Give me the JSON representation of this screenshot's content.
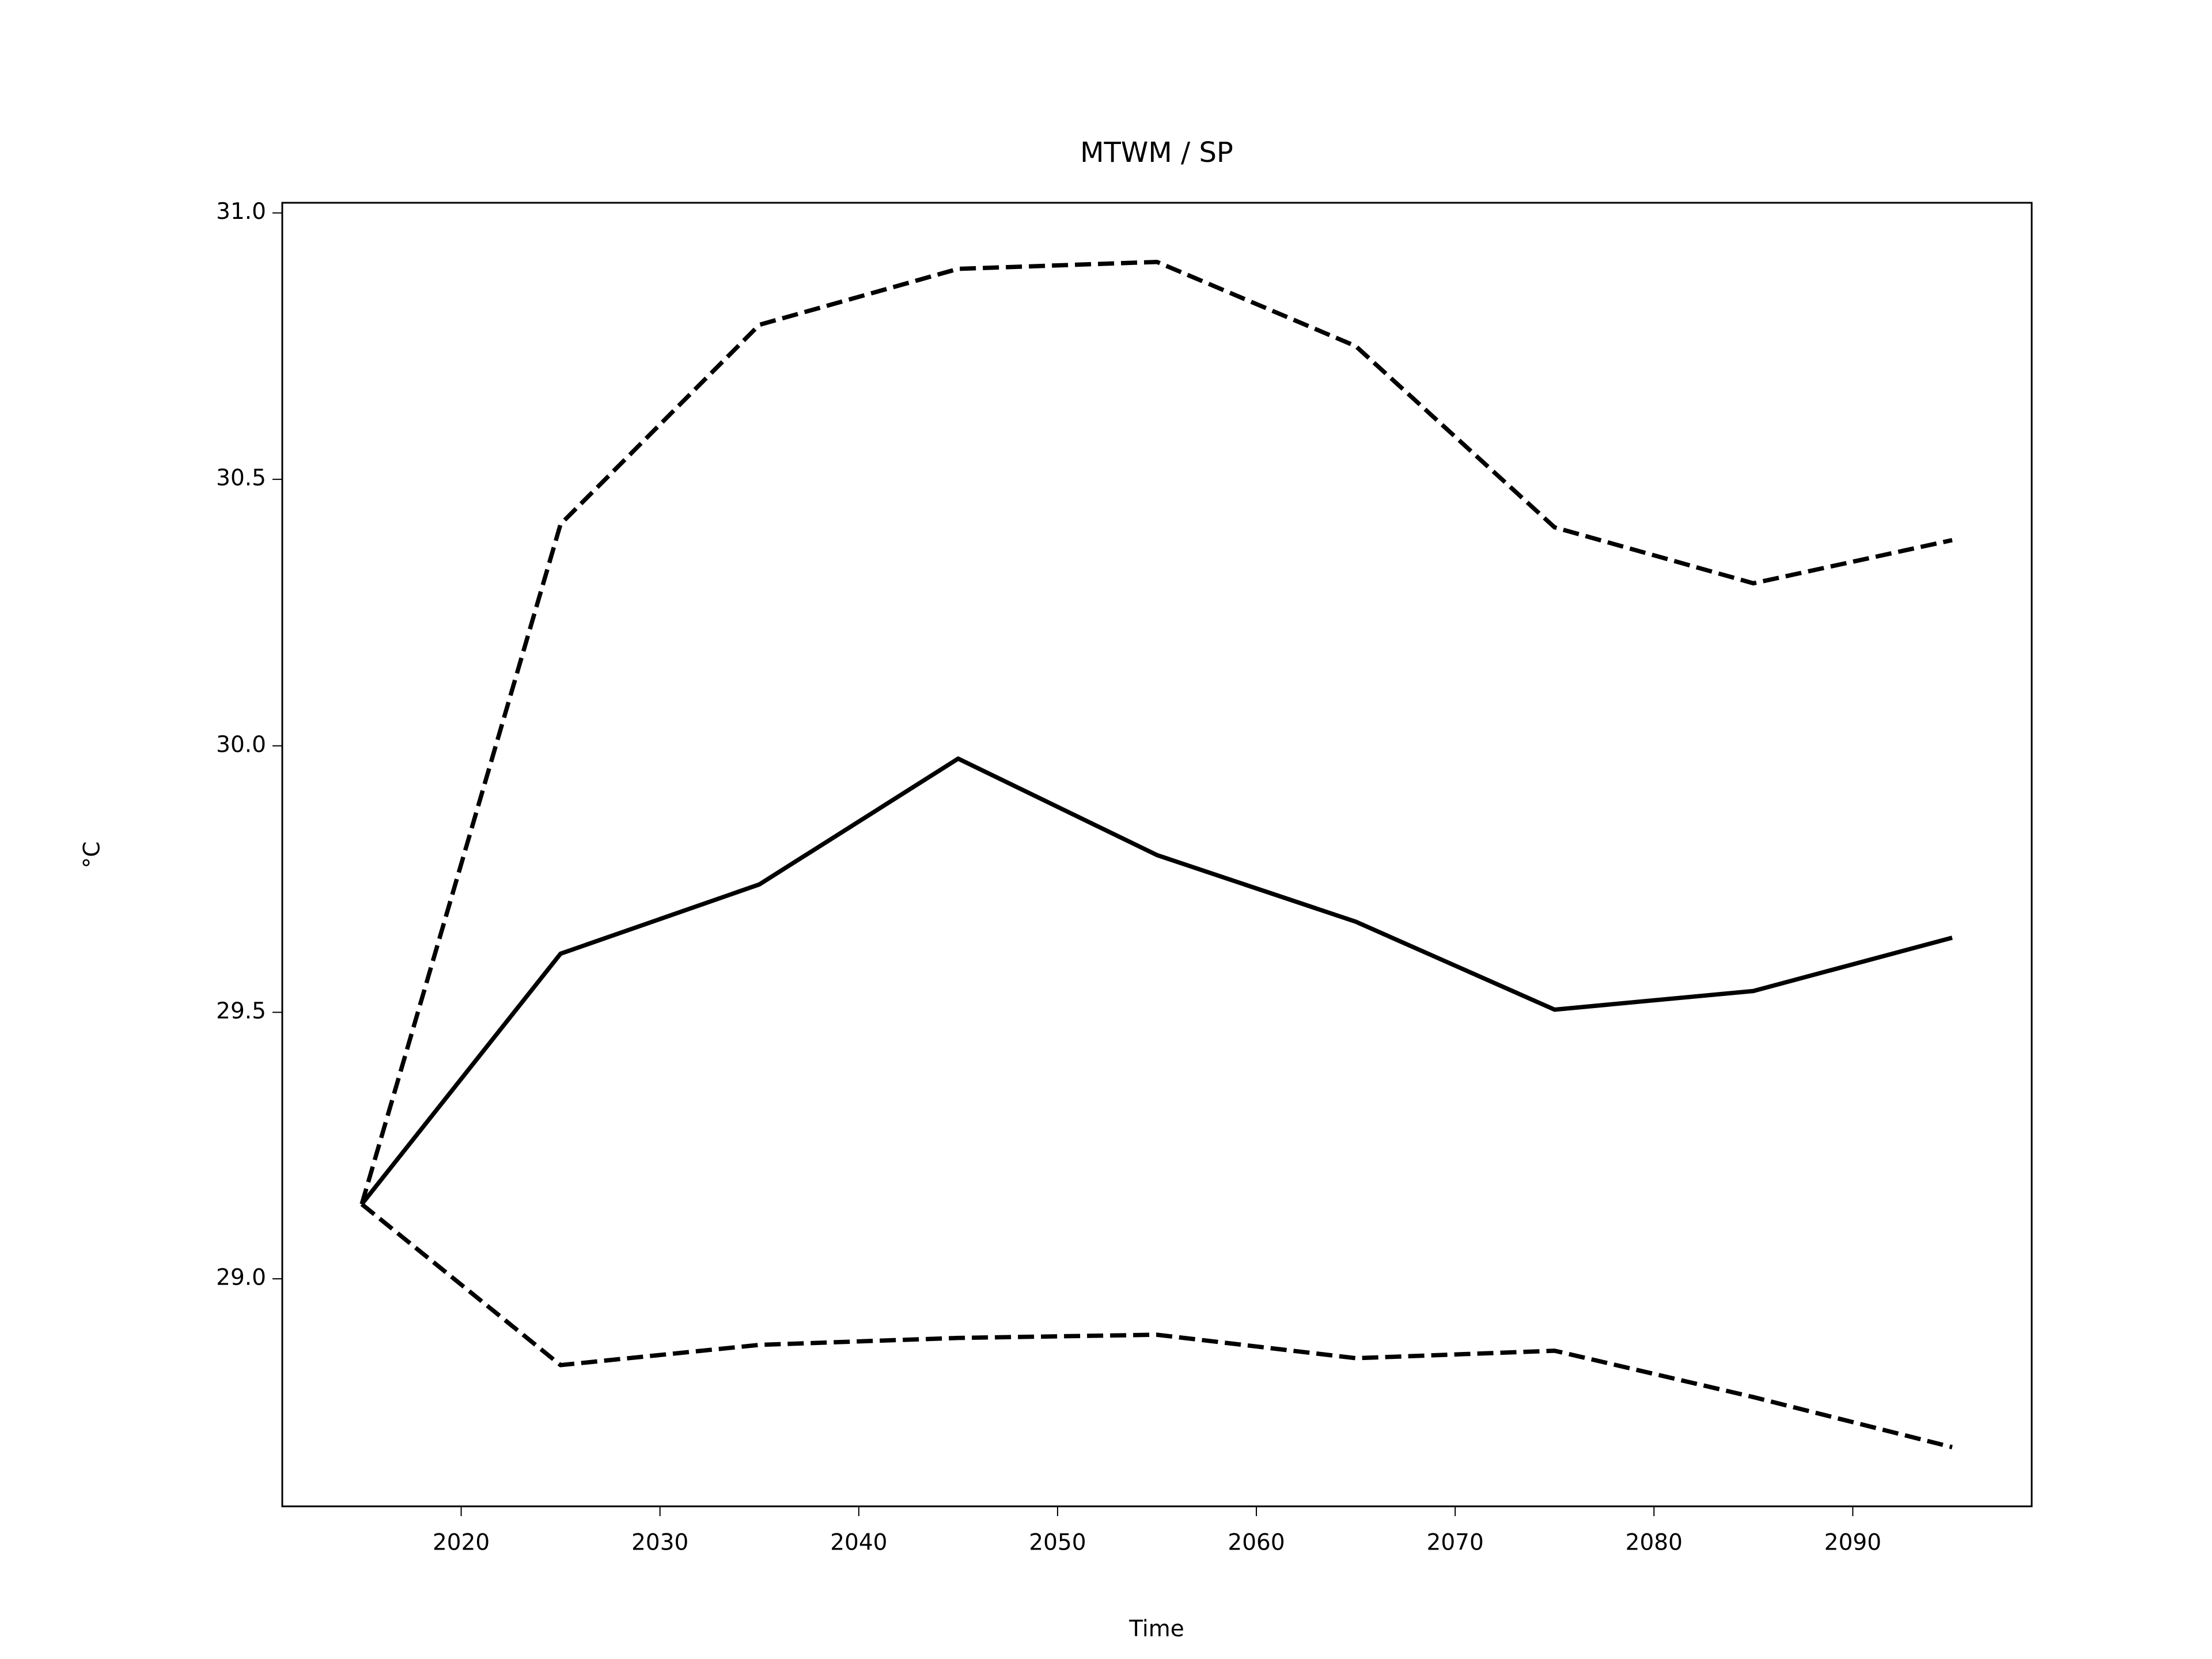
{
  "chart_data": {
    "type": "line",
    "title": "MTWM / SP",
    "x_label": "Time",
    "y_label": "°C",
    "x": [
      2015,
      2025,
      2035,
      2045,
      2055,
      2065,
      2075,
      2085,
      2095
    ],
    "series": [
      {
        "color": "#000000",
        "dashed": true,
        "values": [
          29.14,
          30.416,
          30.79,
          30.895,
          30.908,
          30.75,
          30.41,
          30.305,
          30.386
        ]
      },
      {
        "color": "#000000",
        "dashed": false,
        "values": [
          29.14,
          29.61,
          29.74,
          29.976,
          29.795,
          29.67,
          29.505,
          29.54,
          29.64
        ]
      },
      {
        "color": "#000000",
        "dashed": true,
        "values": [
          29.14,
          28.838,
          28.876,
          28.889,
          28.895,
          28.851,
          28.865,
          28.778,
          28.684
        ]
      }
    ],
    "xlim": [
      2011,
      2099
    ],
    "ylim": [
      28.573,
      31.019
    ],
    "xticks": [
      2020,
      2030,
      2040,
      2050,
      2060,
      2070,
      2080,
      2090
    ],
    "yticks": [
      {
        "value": 29,
        "label": "29.0"
      },
      29.5,
      {
        "value": 30,
        "label": "30.0"
      },
      30.5,
      {
        "value": 31,
        "label": "31.0"
      }
    ],
    "grid": false
  }
}
